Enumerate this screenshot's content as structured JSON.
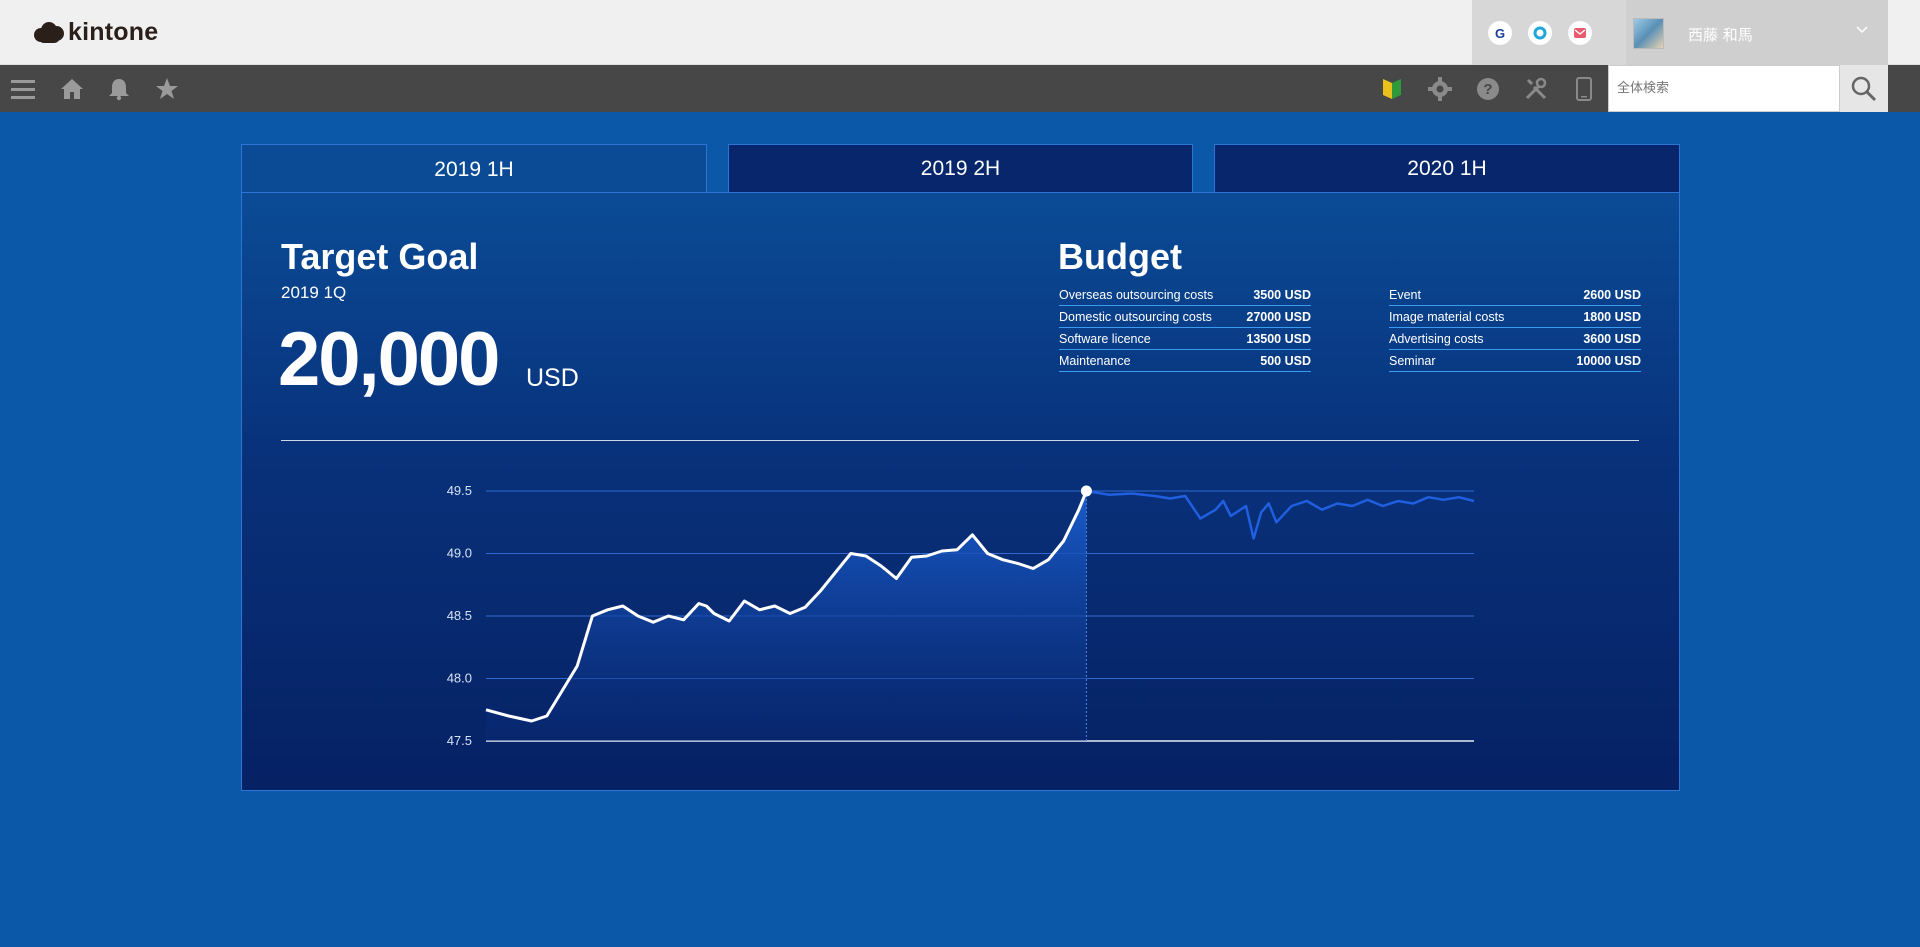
{
  "header": {
    "logo_text": "kintone",
    "services": [
      {
        "icon": "google-icon",
        "glyph": "G",
        "color": "#1a3e9a"
      },
      {
        "icon": "circle-service-icon",
        "glyph": "",
        "color": "#1fa7d8"
      },
      {
        "icon": "mail-icon",
        "glyph": "",
        "color": "#e85a6e"
      }
    ],
    "user_name": "西藤 和馬"
  },
  "toolbar": {
    "left_icons": [
      "menu-icon",
      "home-icon",
      "bell-icon",
      "star-icon"
    ],
    "right_icons": [
      "beginner-mark-icon",
      "gear-icon",
      "help-icon",
      "tools-icon",
      "mobile-icon"
    ],
    "search_placeholder": "全体検索"
  },
  "tabs": [
    {
      "label": "2019 1H",
      "active": true
    },
    {
      "label": "2019 2H",
      "active": false
    },
    {
      "label": "2020 1H",
      "active": false
    }
  ],
  "goal": {
    "title": "Target Goal",
    "period": "2019 1Q",
    "amount": "20,000",
    "unit": "USD"
  },
  "budget": {
    "title": "Budget",
    "left": [
      {
        "label": "Overseas outsourcing costs",
        "value": "3500 USD"
      },
      {
        "label": "Domestic outsourcing costs",
        "value": "27000 USD"
      },
      {
        "label": "Software licence",
        "value": "13500 USD"
      },
      {
        "label": "Maintenance",
        "value": "500 USD"
      }
    ],
    "right": [
      {
        "label": "Event",
        "value": "2600 USD"
      },
      {
        "label": "Image material costs",
        "value": "1800 USD"
      },
      {
        "label": "Advertising costs",
        "value": "3600 USD"
      },
      {
        "label": "Seminar",
        "value": "10000 USD"
      }
    ]
  },
  "chart_data": {
    "type": "area",
    "ylim": [
      47.5,
      49.5
    ],
    "yticks": [
      "49.5",
      "49.0",
      "48.5",
      "48.0",
      "47.5"
    ],
    "grid": true,
    "series": [
      {
        "style": "actual",
        "x": [
          0,
          3,
          6,
          8,
          10,
          12,
          14,
          16,
          18,
          20,
          22,
          24,
          26,
          28,
          29,
          30,
          32,
          34,
          36,
          38,
          40,
          42,
          44,
          46,
          48,
          50,
          52,
          54,
          56,
          58,
          60,
          62,
          64,
          66,
          68,
          70,
          72,
          74,
          76,
          78,
          79
        ],
        "values": [
          47.75,
          47.7,
          47.66,
          47.7,
          47.9,
          48.1,
          48.5,
          48.55,
          48.58,
          48.5,
          48.45,
          48.5,
          48.47,
          48.6,
          48.58,
          48.52,
          48.46,
          48.62,
          48.55,
          48.58,
          48.52,
          48.57,
          48.7,
          48.85,
          49.0,
          48.98,
          48.9,
          48.8,
          48.97,
          48.98,
          49.02,
          49.03,
          49.15,
          49.0,
          48.95,
          48.92,
          48.88,
          48.95,
          49.1,
          49.35,
          49.5
        ]
      },
      {
        "style": "forecast",
        "x": [
          79,
          82,
          85,
          88,
          90,
          92,
          94,
          96,
          97,
          98,
          100,
          101,
          102,
          103,
          104,
          106,
          108,
          110,
          112,
          114,
          116,
          118,
          120,
          122,
          124,
          126,
          128,
          130
        ],
        "values": [
          49.5,
          49.47,
          49.48,
          49.46,
          49.44,
          49.46,
          49.28,
          49.35,
          49.42,
          49.3,
          49.38,
          49.12,
          49.33,
          49.4,
          49.25,
          49.38,
          49.42,
          49.35,
          49.4,
          49.38,
          49.43,
          49.38,
          49.42,
          49.4,
          49.45,
          49.43,
          49.45,
          49.42
        ]
      }
    ]
  }
}
